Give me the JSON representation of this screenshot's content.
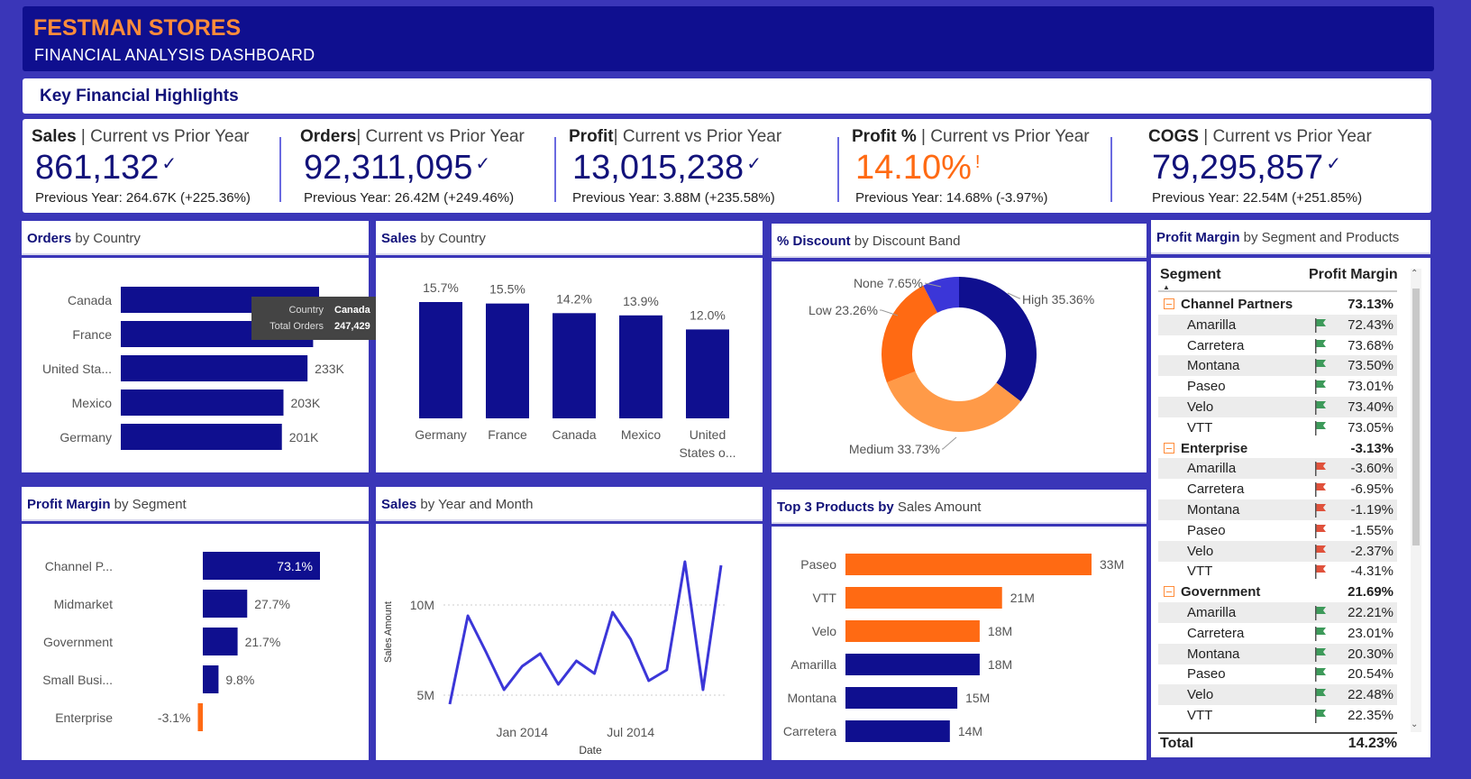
{
  "header": {
    "brand": "FESTMAN STORES",
    "subtitle": "FINANCIAL ANALYSIS DASHBOARD"
  },
  "highlights_title": "Key Financial Highlights",
  "kpis": [
    {
      "bold": "Sales",
      "rest": " | Current vs Prior Year",
      "value": "861,132",
      "prev": "Previous Year: 264.67K (+225.36%)",
      "status": "check"
    },
    {
      "bold": "Orders",
      "rest": "| Current vs Prior Year",
      "value": "92,311,095",
      "prev": "Previous Year: 26.42M (+249.46%)",
      "status": "check"
    },
    {
      "bold": "Profit",
      "rest": "| Current vs Prior Year",
      "value": "13,015,238",
      "prev": "Previous Year: 3.88M (+235.58%)",
      "status": "check"
    },
    {
      "bold": "Profit %",
      "rest": " | Current vs Prior Year",
      "value": "14.10%",
      "prev": "Previous Year: 14.68% (-3.97%)",
      "status": "alert"
    },
    {
      "bold": "COGS",
      "rest": " | Current vs Prior Year",
      "value": "79,295,857",
      "prev": "Previous Year: 22.54M (+251.85%)",
      "status": "check"
    }
  ],
  "panels": {
    "orders_country": {
      "bold": "Orders",
      "rest": " by Country"
    },
    "sales_country": {
      "bold": "Sales",
      "rest": " by Country"
    },
    "discount": {
      "bold": "% Discount",
      "rest": " by Discount Band"
    },
    "pm_segment_products": {
      "bold": "Profit Margin",
      "rest": " by Segment and Products"
    },
    "pm_segment": {
      "bold": "Profit Margin",
      "rest": " by Segment"
    },
    "sales_year_month": {
      "bold": "Sales",
      "rest": " by Year and Month"
    },
    "top3": {
      "bold": "Top 3 Products by",
      "rest": " Sales Amount"
    }
  },
  "tooltip": {
    "k1": "Country",
    "v1": "Canada",
    "k2": "Total Orders",
    "v2": "247,429"
  },
  "colors": {
    "navy": "#0f0f8f",
    "orange": "#ff6a13",
    "light_orange": "#ff9a48",
    "blue": "#3b36d8"
  },
  "chart_data": [
    {
      "id": "orders_by_country",
      "type": "bar",
      "orientation": "horizontal",
      "categories": [
        "Canada",
        "France",
        "United Sta...",
        "Mexico",
        "Germany"
      ],
      "values": [
        247429,
        240000,
        233000,
        203000,
        201000
      ],
      "labels": [
        "",
        "",
        "233K",
        "203K",
        "201K"
      ]
    },
    {
      "id": "sales_by_country",
      "type": "bar",
      "categories": [
        "Germany",
        "France",
        "Canada",
        "Mexico",
        "United States o..."
      ],
      "values": [
        15.7,
        15.5,
        14.2,
        13.9,
        12.0
      ],
      "labels": [
        "15.7%",
        "15.5%",
        "14.2%",
        "13.9%",
        "12.0%"
      ]
    },
    {
      "id": "discount_band",
      "type": "pie",
      "donut": true,
      "slices": [
        {
          "name": "High",
          "value": 35.36,
          "label": "High 35.36%",
          "color": "#0f0f8f"
        },
        {
          "name": "Medium",
          "value": 33.73,
          "label": "Medium 33.73%",
          "color": "#ff9a48"
        },
        {
          "name": "Low",
          "value": 23.26,
          "label": "Low 23.26%",
          "color": "#ff6a13"
        },
        {
          "name": "None",
          "value": 7.65,
          "label": "None 7.65%",
          "color": "#3b36d8"
        }
      ]
    },
    {
      "id": "profit_margin_segment",
      "type": "bar",
      "orientation": "horizontal",
      "categories": [
        "Channel P...",
        "Midmarket",
        "Government",
        "Small Busi...",
        "Enterprise"
      ],
      "values": [
        73.1,
        27.7,
        21.7,
        9.8,
        -3.1
      ],
      "labels": [
        "73.1%",
        "27.7%",
        "21.7%",
        "9.8%",
        "-3.1%"
      ]
    },
    {
      "id": "sales_year_month",
      "type": "line",
      "xlabel": "Date",
      "ylabel": "Sales Amount",
      "x_ticks": [
        "Jan 2014",
        "Jul 2014"
      ],
      "y_ticks": [
        "5M",
        "10M"
      ],
      "x": [
        "2013-09",
        "2013-10",
        "2013-11",
        "2013-12",
        "2014-01",
        "2014-02",
        "2014-03",
        "2014-04",
        "2014-05",
        "2014-06",
        "2014-07",
        "2014-08",
        "2014-09",
        "2014-10",
        "2014-11",
        "2014-12"
      ],
      "values": [
        4.5,
        9.4,
        7.4,
        5.3,
        6.6,
        7.3,
        5.6,
        6.9,
        6.2,
        9.6,
        8.1,
        5.8,
        6.4,
        12.4,
        5.3,
        12.2
      ],
      "ylim": [
        4,
        13
      ]
    },
    {
      "id": "top3_products",
      "type": "bar",
      "orientation": "horizontal",
      "categories": [
        "Paseo",
        "VTT",
        "Velo",
        "Amarilla",
        "Montana",
        "Carretera"
      ],
      "values": [
        33,
        21,
        18,
        18,
        15,
        14
      ],
      "labels": [
        "33M",
        "21M",
        "18M",
        "18M",
        "15M",
        "14M"
      ],
      "colors": [
        "#ff6a13",
        "#ff6a13",
        "#ff6a13",
        "#0f0f8f",
        "#0f0f8f",
        "#0f0f8f"
      ]
    },
    {
      "id": "pm_segment_products_table",
      "type": "table",
      "columns": [
        "Segment",
        "Profit Margin"
      ],
      "rows": [
        {
          "kind": "group",
          "name": "Channel Partners",
          "value": "73.13%"
        },
        {
          "kind": "item",
          "name": "Amarilla",
          "value": "72.43%",
          "flag": "green"
        },
        {
          "kind": "item",
          "name": "Carretera",
          "value": "73.68%",
          "flag": "green"
        },
        {
          "kind": "item",
          "name": "Montana",
          "value": "73.50%",
          "flag": "green"
        },
        {
          "kind": "item",
          "name": "Paseo",
          "value": "73.01%",
          "flag": "green"
        },
        {
          "kind": "item",
          "name": "Velo",
          "value": "73.40%",
          "flag": "green"
        },
        {
          "kind": "item",
          "name": "VTT",
          "value": "73.05%",
          "flag": "green"
        },
        {
          "kind": "group",
          "name": "Enterprise",
          "value": "-3.13%"
        },
        {
          "kind": "item",
          "name": "Amarilla",
          "value": "-3.60%",
          "flag": "red"
        },
        {
          "kind": "item",
          "name": "Carretera",
          "value": "-6.95%",
          "flag": "red"
        },
        {
          "kind": "item",
          "name": "Montana",
          "value": "-1.19%",
          "flag": "red"
        },
        {
          "kind": "item",
          "name": "Paseo",
          "value": "-1.55%",
          "flag": "red"
        },
        {
          "kind": "item",
          "name": "Velo",
          "value": "-2.37%",
          "flag": "red"
        },
        {
          "kind": "item",
          "name": "VTT",
          "value": "-4.31%",
          "flag": "red"
        },
        {
          "kind": "group",
          "name": "Government",
          "value": "21.69%"
        },
        {
          "kind": "item",
          "name": "Amarilla",
          "value": "22.21%",
          "flag": "green"
        },
        {
          "kind": "item",
          "name": "Carretera",
          "value": "23.01%",
          "flag": "green"
        },
        {
          "kind": "item",
          "name": "Montana",
          "value": "20.30%",
          "flag": "green"
        },
        {
          "kind": "item",
          "name": "Paseo",
          "value": "20.54%",
          "flag": "green"
        },
        {
          "kind": "item",
          "name": "Velo",
          "value": "22.48%",
          "flag": "green"
        },
        {
          "kind": "item",
          "name": "VTT",
          "value": "22.35%",
          "flag": "green"
        }
      ],
      "total": {
        "name": "Total",
        "value": "14.23%"
      }
    }
  ]
}
